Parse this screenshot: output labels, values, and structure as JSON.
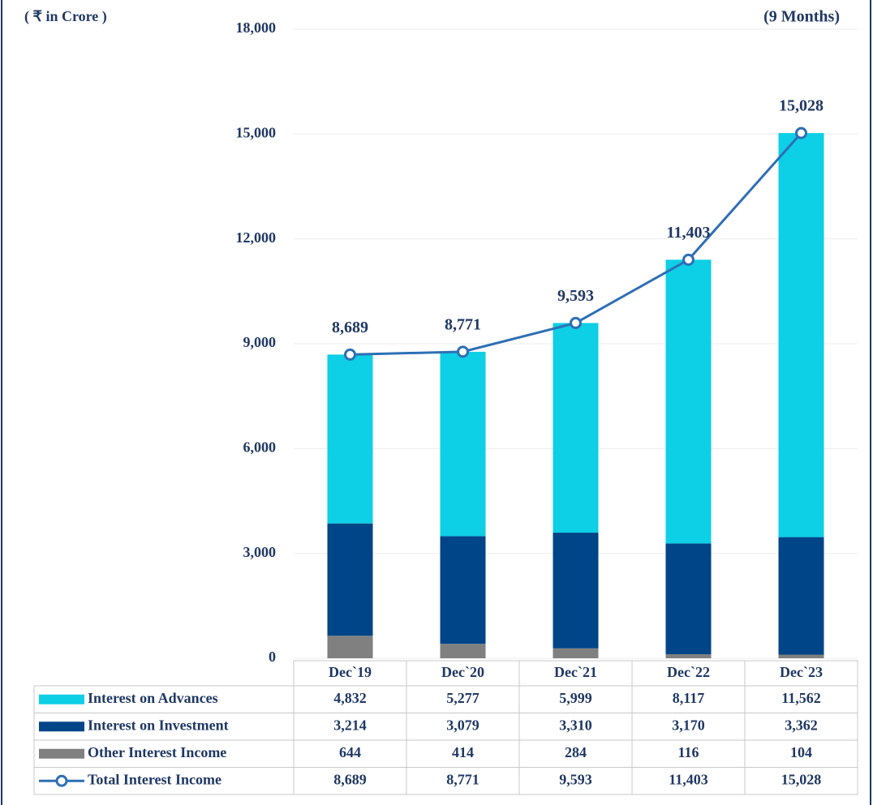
{
  "chart_data": {
    "type": "bar",
    "unit_label": "( ₹ in Crore )",
    "annotation": "(9 Months)",
    "categories": [
      "Dec`19",
      "Dec`20",
      "Dec`21",
      "Dec`22",
      "Dec`23"
    ],
    "series": [
      {
        "name": "Interest on Advances",
        "color": "#0dcfe6",
        "type": "bar",
        "values": [
          4832,
          5277,
          5999,
          8117,
          11562
        ],
        "value_labels": [
          "4,832",
          "5,277",
          "5,999",
          "8,117",
          "11,562"
        ]
      },
      {
        "name": "Interest on Investment",
        "color": "#004587",
        "type": "bar",
        "values": [
          3214,
          3079,
          3310,
          3170,
          3362
        ],
        "value_labels": [
          "3,214",
          "3,079",
          "3,310",
          "3,170",
          "3,362"
        ]
      },
      {
        "name": "Other Interest Income",
        "color": "#808080",
        "type": "bar",
        "values": [
          644,
          414,
          284,
          116,
          104
        ],
        "value_labels": [
          "644",
          "414",
          "284",
          "116",
          "104"
        ]
      },
      {
        "name": "Total Interest Income",
        "color": "#2e6fb5",
        "type": "line",
        "values": [
          8689,
          8771,
          9593,
          11403,
          15028
        ],
        "value_labels": [
          "8,689",
          "8,771",
          "9,593",
          "11,403",
          "15,028"
        ]
      }
    ],
    "ylim": [
      0,
      18000
    ],
    "yticks": [
      0,
      {
        "value": 3000,
        "label": "3,000"
      },
      {
        "value": 6000,
        "label": "6,000"
      },
      {
        "value": 9000,
        "label": "9,000"
      },
      {
        "value": 12000,
        "label": "12,000"
      },
      {
        "value": 15000,
        "label": "15,000"
      },
      {
        "value": 18000,
        "label": "18,000"
      }
    ],
    "grid": true
  }
}
